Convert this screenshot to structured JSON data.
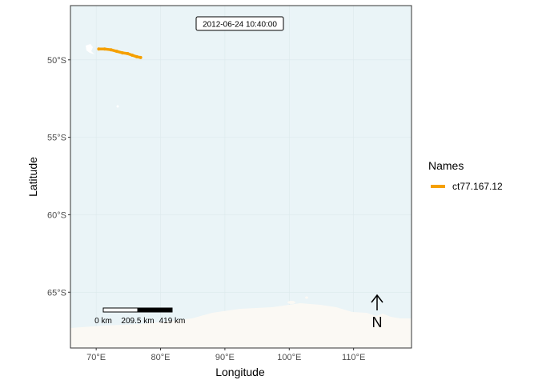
{
  "map": {
    "timestamp": "2012-06-24 10:40:00",
    "x_label": "Longitude",
    "y_label": "Latitude",
    "x_ticks": [
      "70°E",
      "80°E",
      "90°E",
      "100°E",
      "110°E"
    ],
    "y_ticks": [
      "50°S",
      "55°S",
      "60°S",
      "65°S"
    ],
    "legend": {
      "title": "Names",
      "items": [
        {
          "label": "ct77.167.12",
          "color": "#F5A000"
        }
      ]
    },
    "scale_bar": {
      "labels": [
        "0 km",
        "209.5 km",
        "419 km"
      ]
    },
    "north_arrow": {
      "label": "N"
    },
    "colors": {
      "ocean": "#EAF4F7",
      "land": "#FBF9F4",
      "grid": "#DCE9EC",
      "track": "#F5A000",
      "panel_border": "#333333"
    }
  },
  "chart_data": {
    "type": "line",
    "xlabel": "Longitude",
    "ylabel": "Latitude",
    "xlim": [
      66,
      119
    ],
    "ylim": [
      -68.6,
      -46.5
    ],
    "x_ticks": [
      70,
      80,
      90,
      100,
      110
    ],
    "y_ticks": [
      -50,
      -55,
      -60,
      -65
    ],
    "grid": true,
    "legend_position": "right",
    "series": [
      {
        "name": "ct77.167.12",
        "lon": [
          70.4,
          71.3,
          72.3,
          73.2,
          74.1,
          74.9,
          75.6,
          76.3,
          76.9
        ],
        "lat": [
          -49.3,
          -49.3,
          -49.35,
          -49.45,
          -49.55,
          -49.6,
          -49.7,
          -49.8,
          -49.85
        ]
      }
    ]
  }
}
